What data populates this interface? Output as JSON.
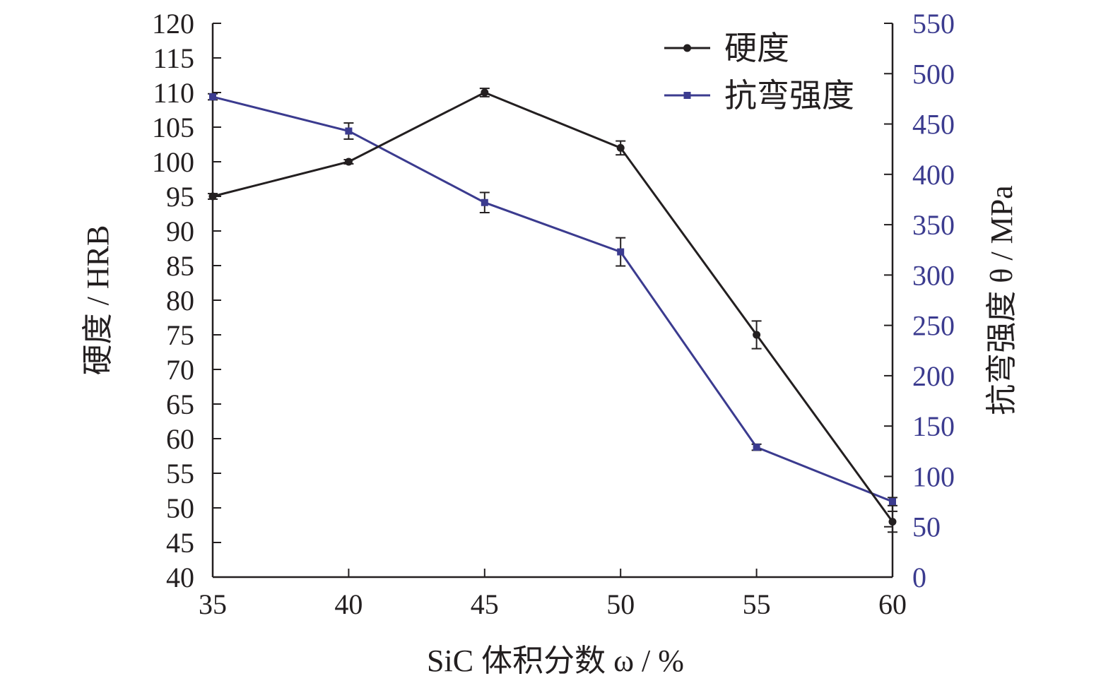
{
  "chart_data": {
    "type": "line",
    "x": [
      35,
      40,
      45,
      50,
      55,
      60
    ],
    "xlim": [
      35,
      60
    ],
    "x_ticks": [
      "35",
      "40",
      "45",
      "50",
      "55",
      "60"
    ],
    "xlabel": "SiC 体积分数 ω / %",
    "y_left": {
      "label": "硬度 / HRB",
      "lim": [
        40,
        120
      ],
      "ticks": [
        "120",
        "115",
        "110",
        "105",
        "100",
        "95",
        "90",
        "85",
        "80",
        "75",
        "70",
        "65",
        "60",
        "55",
        "50",
        "45",
        "40"
      ]
    },
    "y_right": {
      "label": "抗弯强度 θ / MPa",
      "lim": [
        0,
        550
      ],
      "ticks": [
        "550",
        "500",
        "450",
        "400",
        "350",
        "300",
        "250",
        "200",
        "150",
        "100",
        "50",
        "0"
      ]
    },
    "series": [
      {
        "name": "硬度",
        "axis": "left",
        "color": "#231f20",
        "marker": "circle",
        "values": [
          95,
          100,
          110,
          102,
          75,
          48
        ],
        "errors": [
          0.4,
          0.3,
          0.6,
          1.0,
          2.0,
          1.5
        ]
      },
      {
        "name": "抗弯强度",
        "axis": "right",
        "color": "#3b3b8f",
        "marker": "square",
        "values": [
          477,
          443,
          372,
          323,
          129,
          75
        ],
        "errors": [
          3,
          8,
          10,
          14,
          3,
          4
        ]
      }
    ],
    "legend_position": "top-right",
    "grid": false,
    "colors": {
      "axis": "#231f20",
      "right_axis": "#3b3b8f"
    }
  }
}
